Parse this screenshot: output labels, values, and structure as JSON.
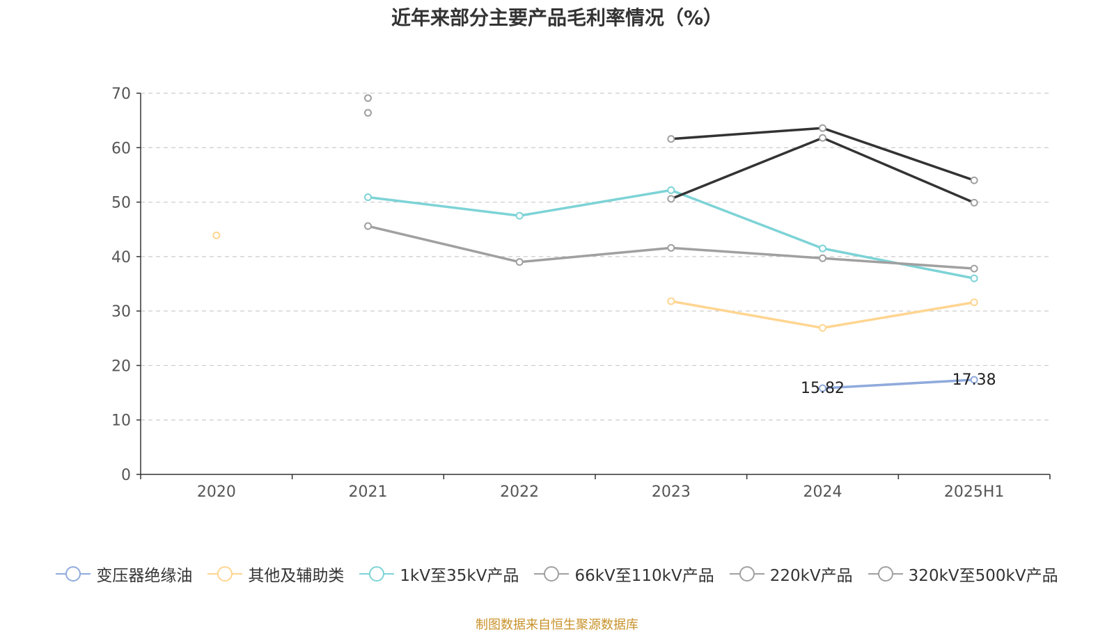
{
  "chart_data": {
    "type": "line",
    "title": "近年来部分主要产品毛利率情况（%）",
    "categories": [
      "2020",
      "2021",
      "2022",
      "2023",
      "2024",
      "2025H1"
    ],
    "ylim": [
      0,
      70
    ],
    "yticks": [
      0,
      10,
      20,
      30,
      40,
      50,
      60,
      70
    ],
    "grid": true,
    "legend_position": "bottom",
    "series": [
      {
        "name": "变压器绝缘油",
        "color": "#8faadc",
        "values": [
          null,
          null,
          null,
          null,
          15.82,
          17.38
        ],
        "labels": [
          null,
          null,
          null,
          null,
          "15.82",
          "17.38"
        ]
      },
      {
        "name": "其他及辅助类",
        "color": "#ffd591",
        "values": [
          43.9,
          null,
          null,
          31.8,
          26.9,
          31.6
        ]
      },
      {
        "name": "1kV至35kV产品",
        "color": "#7dd3d6",
        "values": [
          null,
          50.9,
          47.5,
          52.2,
          41.5,
          36.0
        ]
      },
      {
        "name": "66kV至110kV产品",
        "color": "#a0a0a0",
        "values": [
          null,
          45.6,
          39.0,
          41.6,
          39.7,
          37.8
        ]
      },
      {
        "name": "220kV产品",
        "color": "#333333",
        "values": [
          null,
          66.4,
          null,
          50.6,
          61.8,
          49.9
        ]
      },
      {
        "name": "320kV至500kV产品",
        "color": "#333333",
        "values": [
          null,
          69.1,
          null,
          61.6,
          63.6,
          54.0
        ]
      }
    ]
  },
  "footer": {
    "source": "制图数据来自恒生聚源数据库"
  }
}
